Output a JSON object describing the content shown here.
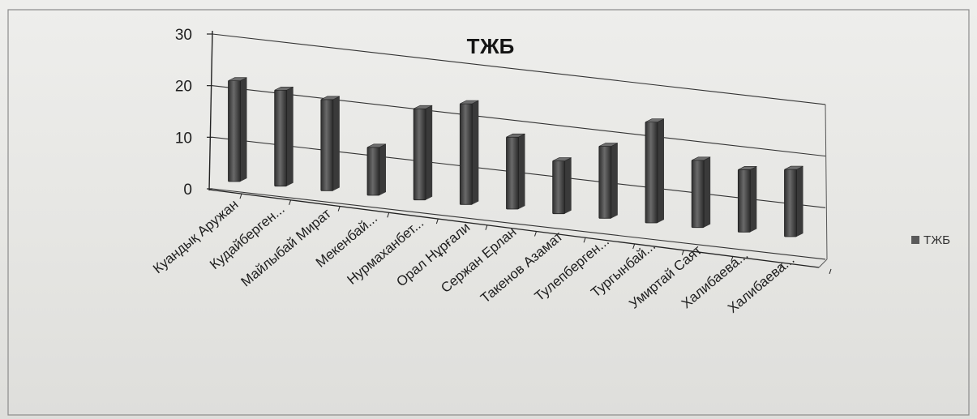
{
  "chart_data": {
    "type": "bar",
    "title": "ТЖБ",
    "categories": [
      "Куандық Аружан",
      "Кудайберген...",
      "Майлыбай Мират",
      "Мекенбай...",
      "Нурмаханбет...",
      "Орал Нұрғали",
      "Сержан Ерлан",
      "Такенов Азамат",
      "Тулепберген...",
      "Тургынбай...",
      "Умиртай Саят",
      "Халибаева...",
      "Халибаева..."
    ],
    "series": [
      {
        "name": "ТЖБ",
        "values": [
          21,
          20,
          19,
          10,
          19,
          21,
          15,
          11,
          15,
          21,
          14,
          13,
          14
        ]
      }
    ],
    "yticks": [
      "0",
      "10",
      "20",
      "30"
    ],
    "ylim": [
      0,
      30
    ],
    "legend_position": "right",
    "grid": true,
    "colors": {
      "bar": "#5a5a5a",
      "grid": "#333333"
    }
  }
}
